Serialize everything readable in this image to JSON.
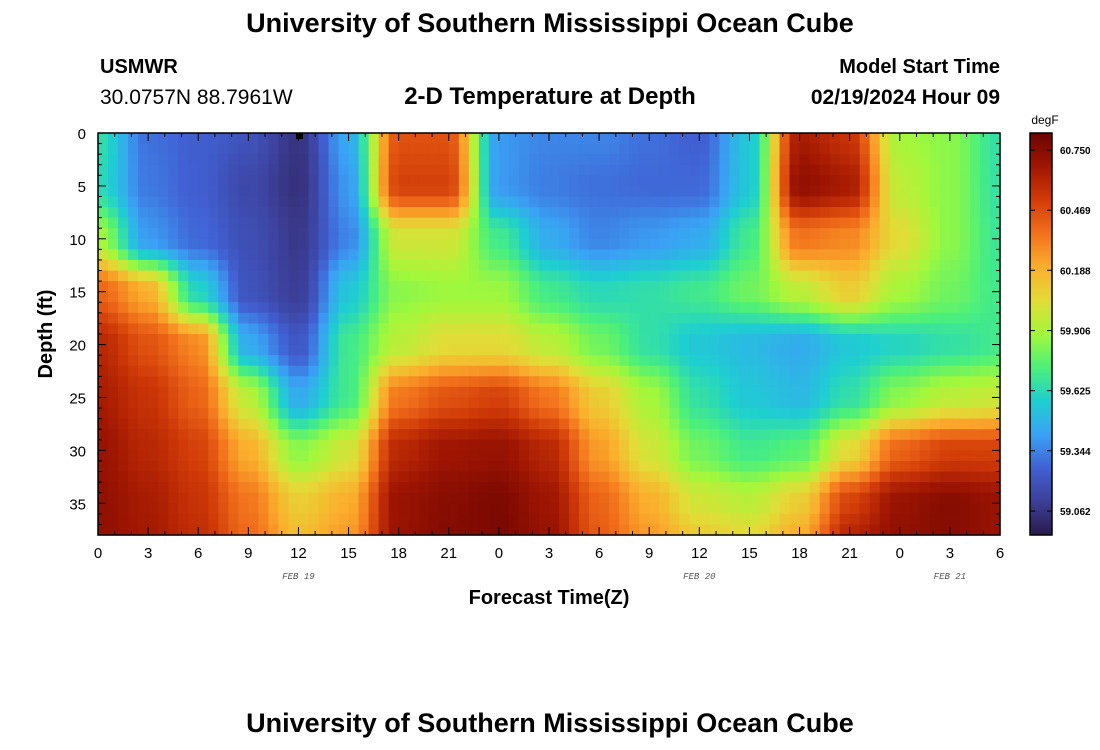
{
  "header": {
    "title": "University of Southern Mississippi Ocean Cube",
    "station_code": "USMWR",
    "station_coords": "30.0757N  88.7961W",
    "subtitle": "2-D Temperature at Depth",
    "start_label": "Model Start Time",
    "start_value": "02/19/2024 Hour 09"
  },
  "footer": {
    "title": "University of Southern Mississippi Ocean Cube"
  },
  "chart_data": {
    "type": "heatmap",
    "xlabel": "Forecast Time(Z)",
    "ylabel": "Depth (ft)",
    "x_tick_labels": [
      "0",
      "3",
      "6",
      "9",
      "12",
      "15",
      "18",
      "21",
      "0",
      "3",
      "6",
      "9",
      "12",
      "15",
      "18",
      "21",
      "0",
      "3",
      "6"
    ],
    "date_labels": [
      {
        "label": "FEB 19",
        "hour": 12
      },
      {
        "label": "FEB 20",
        "hour": 36
      },
      {
        "label": "FEB 21",
        "hour": 51
      }
    ],
    "x_range_hours": [
      0,
      54
    ],
    "y_ticks": [
      0,
      5,
      10,
      15,
      20,
      25,
      30,
      35
    ],
    "y_range": [
      0,
      38
    ],
    "y_inverted": true,
    "colorbar": {
      "unit": "degF",
      "tick_labels": [
        "60.750",
        "60.469",
        "60.188",
        "59.906",
        "59.625",
        "59.344",
        "59.062"
      ],
      "range": [
        58.95,
        60.83
      ],
      "colors": [
        "#2a1a4a",
        "#3c3f98",
        "#4161d4",
        "#3aa2f5",
        "#1ecfd0",
        "#4cf07a",
        "#a2f83b",
        "#e2dc37",
        "#fbae2d",
        "#f2711c",
        "#d13b08",
        "#a01602",
        "#6c0402"
      ]
    },
    "x_hours": [
      0,
      3,
      6,
      9,
      12,
      15,
      18,
      21,
      24,
      27,
      30,
      33,
      36,
      39,
      42,
      45,
      48,
      51,
      54
    ],
    "depths": [
      0,
      5,
      10,
      15,
      20,
      25,
      30,
      35,
      38
    ],
    "values": [
      [
        59.65,
        59.3,
        59.25,
        59.2,
        59.06,
        59.45,
        60.45,
        60.45,
        59.4,
        59.35,
        59.35,
        59.3,
        59.25,
        59.55,
        60.65,
        60.55,
        59.9,
        59.85,
        59.65
      ],
      [
        59.62,
        59.32,
        59.25,
        59.15,
        59.05,
        59.4,
        60.5,
        60.5,
        59.4,
        59.33,
        59.3,
        59.28,
        59.28,
        59.55,
        60.72,
        60.65,
        59.95,
        59.85,
        59.66
      ],
      [
        59.9,
        59.4,
        59.28,
        59.18,
        59.08,
        59.35,
        60.0,
        60.0,
        59.7,
        59.45,
        59.35,
        59.4,
        59.45,
        59.7,
        60.35,
        60.3,
        60.05,
        59.85,
        59.68
      ],
      [
        60.4,
        60.2,
        59.6,
        59.2,
        59.1,
        59.55,
        59.85,
        59.88,
        59.88,
        59.7,
        59.62,
        59.65,
        59.7,
        59.8,
        59.95,
        60.1,
        59.9,
        59.8,
        59.7
      ],
      [
        60.6,
        60.45,
        60.3,
        59.45,
        59.22,
        59.7,
        59.95,
        60.05,
        60.05,
        59.95,
        59.8,
        59.65,
        59.55,
        59.5,
        59.45,
        59.55,
        59.6,
        59.65,
        59.7
      ],
      [
        60.65,
        60.55,
        60.4,
        59.95,
        59.45,
        59.7,
        60.35,
        60.45,
        60.5,
        60.35,
        60.1,
        59.9,
        59.65,
        59.55,
        59.5,
        59.65,
        59.85,
        59.95,
        59.98
      ],
      [
        60.7,
        60.6,
        60.5,
        60.2,
        59.85,
        60.0,
        60.6,
        60.68,
        60.7,
        60.6,
        60.25,
        60.0,
        59.8,
        59.7,
        59.75,
        60.05,
        60.4,
        60.5,
        60.5
      ],
      [
        60.72,
        60.65,
        60.55,
        60.35,
        60.1,
        60.2,
        60.7,
        60.75,
        60.78,
        60.68,
        60.4,
        60.2,
        60.0,
        59.95,
        60.1,
        60.5,
        60.7,
        60.75,
        60.7
      ],
      [
        60.72,
        60.66,
        60.57,
        60.38,
        60.15,
        60.25,
        60.7,
        60.76,
        60.78,
        60.7,
        60.42,
        60.25,
        60.1,
        60.05,
        60.2,
        60.6,
        60.72,
        60.75,
        60.7
      ]
    ]
  }
}
